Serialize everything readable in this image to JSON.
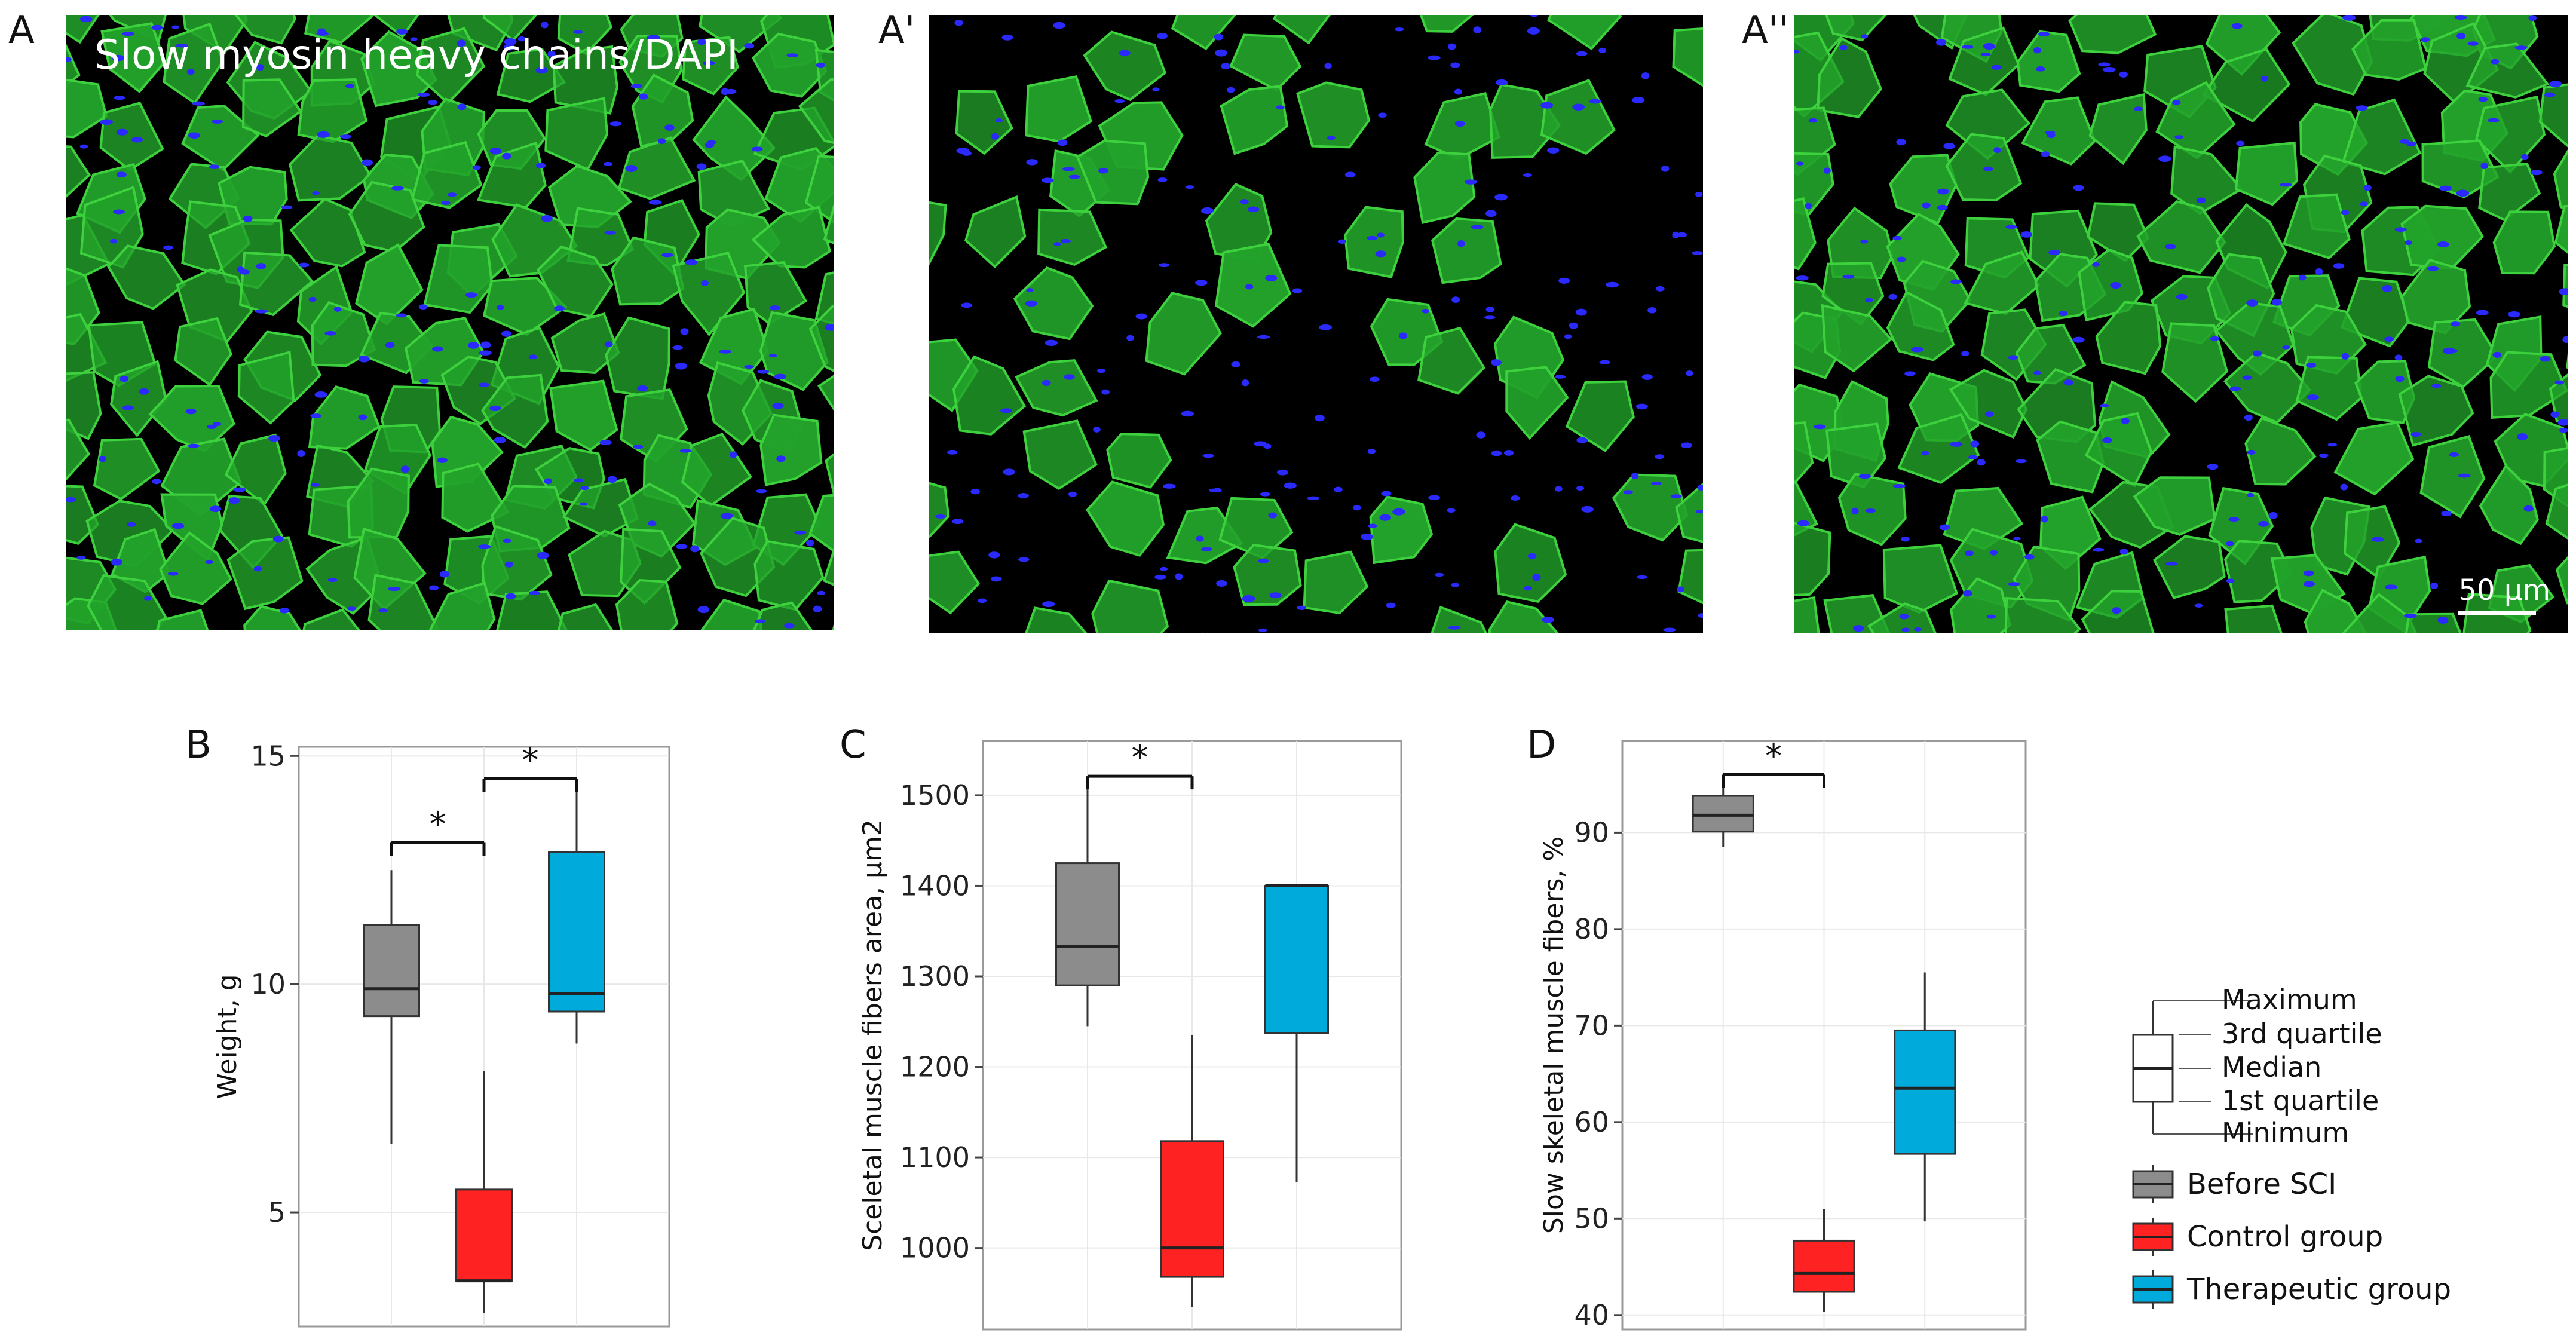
{
  "panels": {
    "A": {
      "letter": "A",
      "caption": "Slow myosin heavy chains/DAPI"
    },
    "A1": {
      "letter": "A'"
    },
    "A2": {
      "letter": "A''",
      "scale_label": "50 µm"
    }
  },
  "colors": {
    "before": "#8c8c8c",
    "control": "#ff2222",
    "therapeutic": "#00aadb",
    "fiber": "#22a22a",
    "nuclei": "#2a2aff"
  },
  "chart_data": [
    {
      "id": "B",
      "letter": "B",
      "type": "box",
      "ylabel": "Weight, g",
      "ylim": [
        2.5,
        15.2
      ],
      "yticks": [
        5,
        10,
        15
      ],
      "groups": [
        {
          "name": "Before SCI",
          "color": "#8c8c8c",
          "min": 6.5,
          "q1": 9.3,
          "median": 9.9,
          "q3": 11.3,
          "max": 12.5
        },
        {
          "name": "Control group",
          "color": "#ff2222",
          "min": 2.8,
          "q1": 3.5,
          "median": 3.5,
          "q3": 5.5,
          "max": 8.1
        },
        {
          "name": "Therapeutic group",
          "color": "#00aadb",
          "min": 8.7,
          "q1": 9.4,
          "median": 9.8,
          "q3": 12.9,
          "max": 14.5
        }
      ],
      "significance": [
        {
          "from": 0,
          "to": 1,
          "y": 13.1,
          "label": "*"
        },
        {
          "from": 1,
          "to": 2,
          "y": 14.5,
          "label": "*"
        }
      ]
    },
    {
      "id": "C",
      "letter": "C",
      "type": "box",
      "ylabel": "Sceletal muscle fibers area, µm2",
      "ylim": [
        910,
        1560
      ],
      "yticks": [
        1000,
        1100,
        1200,
        1300,
        1400,
        1500
      ],
      "groups": [
        {
          "name": "Before SCI",
          "color": "#8c8c8c",
          "min": 1245,
          "q1": 1290,
          "median": 1333,
          "q3": 1425,
          "max": 1520
        },
        {
          "name": "Control group",
          "color": "#ff2222",
          "min": 935,
          "q1": 968,
          "median": 1000,
          "q3": 1118,
          "max": 1235
        },
        {
          "name": "Therapeutic group",
          "color": "#00aadb",
          "min": 1073,
          "q1": 1237,
          "median": 1400,
          "q3": 1400,
          "max": 1400
        }
      ],
      "significance": [
        {
          "from": 0,
          "to": 1,
          "y": 1521,
          "label": "*"
        }
      ]
    },
    {
      "id": "D",
      "letter": "D",
      "type": "box",
      "ylabel": "Slow skeletal muscle  fibers, %",
      "ylim": [
        38.5,
        99.5
      ],
      "yticks": [
        40,
        50,
        60,
        70,
        80,
        90
      ],
      "groups": [
        {
          "name": "Before SCI",
          "color": "#8c8c8c",
          "min": 88.5,
          "q1": 90.1,
          "median": 91.8,
          "q3": 93.8,
          "max": 96.0
        },
        {
          "name": "Control group",
          "color": "#ff2222",
          "min": 40.3,
          "q1": 42.4,
          "median": 44.3,
          "q3": 47.7,
          "max": 51.0
        },
        {
          "name": "Therapeutic group",
          "color": "#00aadb",
          "min": 49.7,
          "q1": 56.7,
          "median": 63.5,
          "q3": 69.5,
          "max": 75.5
        }
      ],
      "significance": [
        {
          "from": 0,
          "to": 1,
          "y": 96.0,
          "label": "*"
        }
      ]
    }
  ],
  "legend": {
    "key_labels": [
      "Maximum",
      "3rd quartile",
      "Median",
      "1st quartile",
      "Minimum"
    ],
    "items": [
      {
        "label": "Before SCI",
        "color": "#8c8c8c"
      },
      {
        "label": "Control group",
        "color": "#ff2222"
      },
      {
        "label": "Therapeutic group",
        "color": "#00aadb"
      }
    ]
  }
}
